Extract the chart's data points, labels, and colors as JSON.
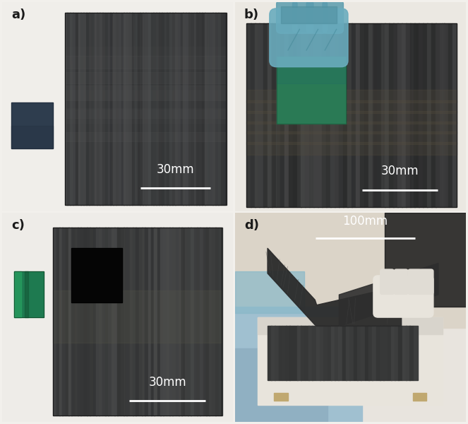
{
  "figsize": [
    6.63,
    6.0
  ],
  "dpi": 100,
  "fig_bg": "#f2f0ec",
  "panel_bgs": [
    "#f0eeea",
    "#ebe8e2",
    "#eeece8",
    "#e8e4de"
  ],
  "panel_labels": [
    "a)",
    "b)",
    "c)",
    "d)"
  ],
  "scale_bars": [
    "30mm",
    "30mm",
    "30mm",
    "100mm"
  ],
  "label_color": "#1a1a1a",
  "scale_color": "#ffffff",
  "large_plate_dark": "#3c3c3c",
  "large_plate_mid": "#4a4a4a",
  "large_plate_light": "#525252",
  "small_wafer_a": "#2e3d4e",
  "green_plate_c": "#1e7a50",
  "green_plate_b": "#2a7a55",
  "cnt_black": "#080808",
  "hand_teal": "#7ab8c8",
  "glove_white": "#e8e6e0",
  "blue_mat": "#a8c8d8",
  "wood_frame": "#c8b890",
  "cream_bg_d": "#ddd8cc"
}
